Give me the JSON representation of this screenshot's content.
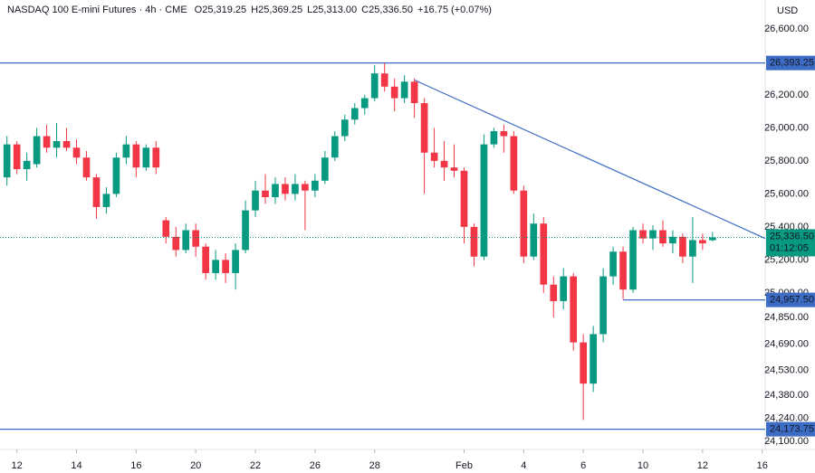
{
  "chart_data": {
    "type": "candlestick",
    "title": "NASDAQ 100 E-mini Futures · 4h · CME",
    "ohlc_header": [
      {
        "key": "O",
        "value": "25,319.25"
      },
      {
        "key": "H",
        "value": "25,369.25"
      },
      {
        "key": "L",
        "value": "25,313.00"
      },
      {
        "key": "C",
        "value": "25,336.50"
      }
    ],
    "change": "+16.75 (+0.07%)",
    "currency": "USD",
    "up_color": "#089981",
    "down_color": "#f23645",
    "line_color": "#3d6cc4",
    "candles": [
      [
        25700,
        25950,
        25650,
        25900
      ],
      [
        25900,
        25920,
        25720,
        25750
      ],
      [
        25750,
        25850,
        25680,
        25800
      ],
      [
        25780,
        26000,
        25760,
        25950
      ],
      [
        25950,
        26020,
        25850,
        25880
      ],
      [
        25880,
        26030,
        25820,
        25920
      ],
      [
        25920,
        26000,
        25860,
        25880
      ],
      [
        25880,
        25930,
        25780,
        25820
      ],
      [
        25820,
        25860,
        25680,
        25700
      ],
      [
        25700,
        25720,
        25450,
        25520
      ],
      [
        25520,
        25640,
        25480,
        25600
      ],
      [
        25600,
        25850,
        25580,
        25820
      ],
      [
        25820,
        25950,
        25780,
        25900
      ],
      [
        25900,
        25920,
        25700,
        25760
      ],
      [
        25760,
        25900,
        25740,
        25880
      ],
      [
        25880,
        25920,
        25720,
        25760
      ],
      [
        25440,
        25460,
        25300,
        25340
      ],
      [
        25340,
        25400,
        25220,
        25260
      ],
      [
        25260,
        25420,
        25240,
        25380
      ],
      [
        25380,
        25420,
        25220,
        25280
      ],
      [
        25280,
        25300,
        25080,
        25120
      ],
      [
        25120,
        25260,
        25080,
        25200
      ],
      [
        25200,
        25240,
        25060,
        25120
      ],
      [
        25120,
        25300,
        25020,
        25260
      ],
      [
        25260,
        25560,
        25240,
        25500
      ],
      [
        25500,
        25680,
        25460,
        25620
      ],
      [
        25620,
        25720,
        25540,
        25580
      ],
      [
        25580,
        25700,
        25540,
        25660
      ],
      [
        25660,
        25700,
        25560,
        25600
      ],
      [
        25600,
        25720,
        25560,
        25660
      ],
      [
        25660,
        25680,
        25380,
        25620
      ],
      [
        25620,
        25720,
        25580,
        25680
      ],
      [
        25680,
        25860,
        25660,
        25820
      ],
      [
        25820,
        25980,
        25800,
        25950
      ],
      [
        25950,
        26080,
        25920,
        26050
      ],
      [
        26050,
        26150,
        26020,
        26120
      ],
      [
        26120,
        26200,
        26080,
        26180
      ],
      [
        26180,
        26380,
        26160,
        26330
      ],
      [
        26330,
        26393.25,
        26220,
        26250
      ],
      [
        26250,
        26300,
        26100,
        26180
      ],
      [
        26180,
        26320,
        26150,
        26280
      ],
      [
        26280,
        26300,
        26060,
        26150
      ],
      [
        26150,
        26180,
        25600,
        25850
      ],
      [
        25850,
        26000,
        25760,
        25800
      ],
      [
        25800,
        25920,
        25680,
        25760
      ],
      [
        25760,
        25900,
        25700,
        25740
      ],
      [
        25740,
        25760,
        25300,
        25400
      ],
      [
        25400,
        25420,
        25160,
        25220
      ],
      [
        25220,
        25960,
        25200,
        25900
      ],
      [
        25900,
        26000,
        25880,
        25980
      ],
      [
        25980,
        26020,
        25850,
        25950
      ],
      [
        25950,
        25980,
        25600,
        25620
      ],
      [
        25620,
        25650,
        25180,
        25220
      ],
      [
        25220,
        25480,
        25200,
        25420
      ],
      [
        25420,
        25460,
        25000,
        25050
      ],
      [
        25050,
        25100,
        24850,
        24950
      ],
      [
        24950,
        25150,
        24900,
        25100
      ],
      [
        25100,
        25120,
        24650,
        24700
      ],
      [
        24700,
        24750,
        24230,
        24450
      ],
      [
        24450,
        24800,
        24400,
        24750
      ],
      [
        24750,
        25150,
        24700,
        25100
      ],
      [
        25100,
        25280,
        25050,
        25250
      ],
      [
        25250,
        25280,
        24960,
        25020
      ],
      [
        25020,
        25400,
        25000,
        25380
      ],
      [
        25380,
        25420,
        25300,
        25330
      ],
      [
        25330,
        25410,
        25260,
        25380
      ],
      [
        25380,
        25440,
        25280,
        25300
      ],
      [
        25300,
        25380,
        25240,
        25340
      ],
      [
        25340,
        25360,
        25180,
        25220
      ],
      [
        25220,
        25460,
        25060,
        25320
      ],
      [
        25320,
        25360,
        25260,
        25300
      ],
      [
        25319.25,
        25369.25,
        25313,
        25336.5
      ]
    ],
    "xlim": [
      -0.7,
      76.3
    ],
    "xticks": [
      {
        "value": 1,
        "label": "12"
      },
      {
        "value": 7,
        "label": "14"
      },
      {
        "value": 13,
        "label": "16"
      },
      {
        "value": 19,
        "label": "20"
      },
      {
        "value": 25,
        "label": "22"
      },
      {
        "value": 31,
        "label": "26"
      },
      {
        "value": 37,
        "label": "28"
      },
      {
        "value": 46,
        "label": "Feb"
      },
      {
        "value": 52,
        "label": "4"
      },
      {
        "value": 58,
        "label": "6"
      },
      {
        "value": 64,
        "label": "10"
      },
      {
        "value": 70,
        "label": "12"
      },
      {
        "value": 76,
        "label": "16"
      }
    ],
    "ylim": [
      24051,
      26775
    ],
    "yticks": [
      {
        "value": 26600,
        "label": "26,600.00"
      },
      {
        "value": 26200,
        "label": "26,200.00"
      },
      {
        "value": 26000,
        "label": "26,000.00"
      },
      {
        "value": 25800,
        "label": "25,800.00"
      },
      {
        "value": 25600,
        "label": "25,600.00"
      },
      {
        "value": 25400,
        "label": "25,400.00"
      },
      {
        "value": 25200,
        "label": "25,200.00"
      },
      {
        "value": 25000,
        "label": "25,000.00"
      },
      {
        "value": 24850,
        "label": "24,850.00"
      },
      {
        "value": 24690,
        "label": "24,690.00"
      },
      {
        "value": 24530,
        "label": "24,530.00"
      },
      {
        "value": 24380,
        "label": "24,380.00"
      },
      {
        "value": 24240,
        "label": "24,240.00"
      },
      {
        "value": 24100,
        "label": "24,100.00"
      }
    ],
    "levels": [
      {
        "value": 26393.25,
        "label": "26,393.25",
        "from": -0.7
      },
      {
        "value": 24957.5,
        "label": "24,957.50",
        "from": 62
      },
      {
        "value": 24173.75,
        "label": "24,173.75",
        "from": -0.7
      }
    ],
    "trendline": [
      [
        41,
        26290
      ],
      [
        76.3,
        25330
      ]
    ],
    "last_price": {
      "value": 25336.5,
      "label": "25,336.50",
      "countdown": "01:12:05"
    }
  }
}
